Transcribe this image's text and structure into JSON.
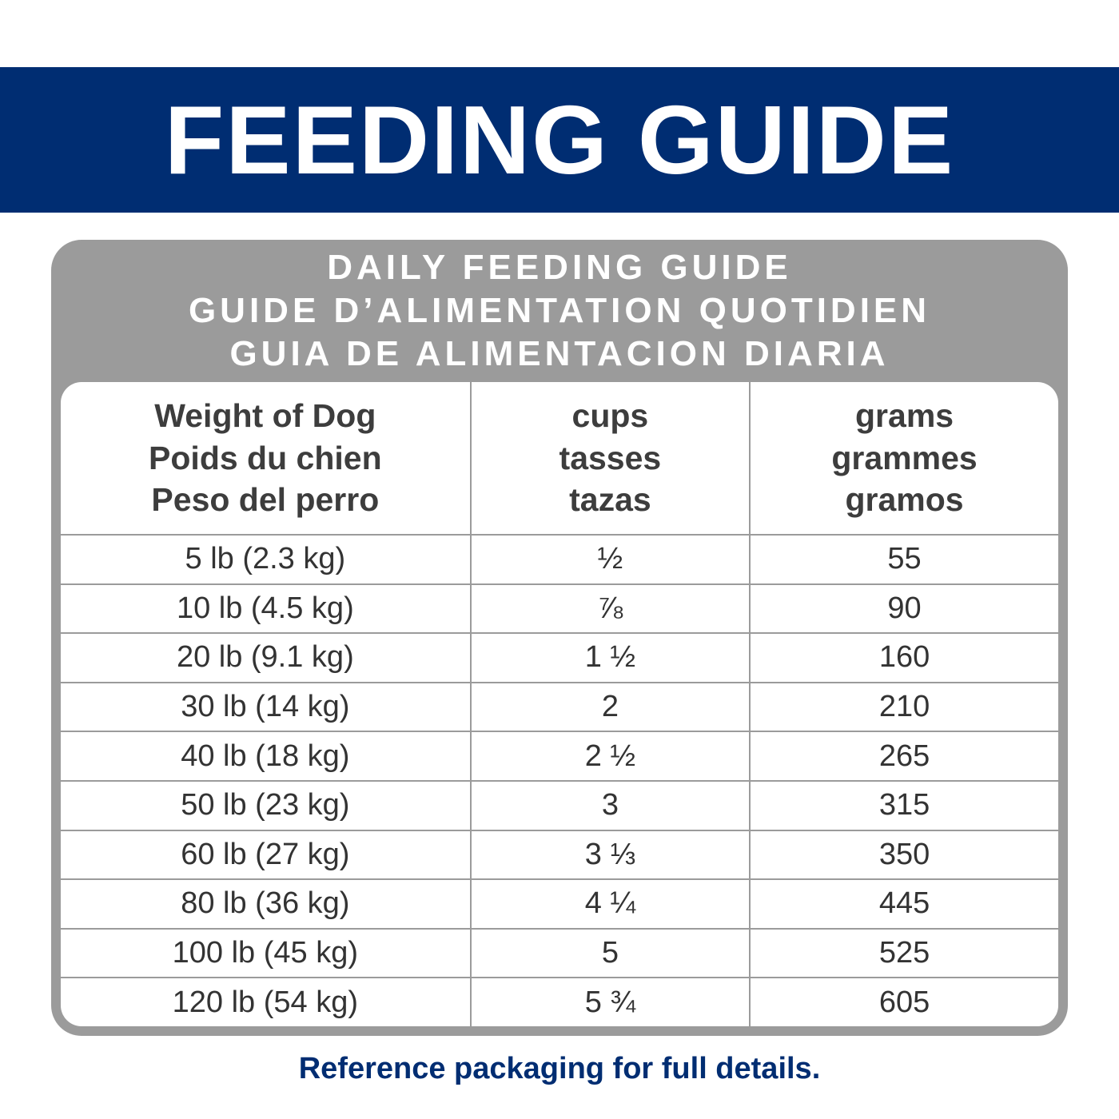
{
  "banner": {
    "title": "FEEDING GUIDE"
  },
  "card": {
    "heading_lines": [
      "DAILY FEEDING GUIDE",
      "GUIDE D’ALIMENTATION QUOTIDIEN",
      "GUIA DE ALIMENTACION DIARIA"
    ],
    "columns": [
      {
        "lines": [
          "Weight of Dog",
          "Poids du chien",
          "Peso del perro"
        ]
      },
      {
        "lines": [
          "cups",
          "tasses",
          "tazas"
        ]
      },
      {
        "lines": [
          "grams",
          "grammes",
          "gramos"
        ]
      }
    ],
    "rows": [
      {
        "weight": "5 lb (2.3 kg)",
        "cups": "½",
        "grams": "55"
      },
      {
        "weight": "10 lb (4.5 kg)",
        "cups": "⅞",
        "grams": "90"
      },
      {
        "weight": "20 lb (9.1 kg)",
        "cups": "1 ½",
        "grams": "160"
      },
      {
        "weight": "30 lb (14 kg)",
        "cups": "2",
        "grams": "210"
      },
      {
        "weight": "40 lb (18 kg)",
        "cups": "2 ½",
        "grams": "265"
      },
      {
        "weight": "50 lb (23 kg)",
        "cups": "3",
        "grams": "315"
      },
      {
        "weight": "60 lb (27 kg)",
        "cups": "3 ⅓",
        "grams": "350"
      },
      {
        "weight": "80 lb (36 kg)",
        "cups": "4 ¼",
        "grams": "445"
      },
      {
        "weight": "100 lb (45 kg)",
        "cups": "5",
        "grams": "525"
      },
      {
        "weight": "120 lb (54 kg)",
        "cups": "5 ¾",
        "grams": "605"
      }
    ]
  },
  "footer": {
    "note": "Reference packaging for full details."
  },
  "colors": {
    "banner_blue": "#002d72",
    "card_gray": "#9b9b9b",
    "text_dark": "#333333",
    "text_white": "#ffffff"
  }
}
